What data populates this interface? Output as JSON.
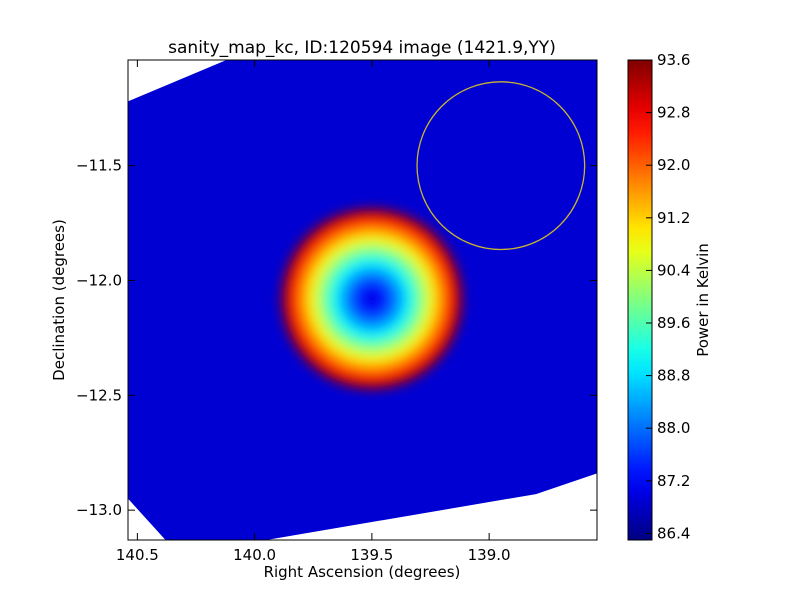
{
  "chart_data": {
    "type": "heatmap",
    "title": "sanity_map_kc, ID:120594 image (1421.9,YY)",
    "xlabel": "Right Ascension (degrees)",
    "ylabel": "Declination (degrees)",
    "xlim": [
      140.54,
      138.54
    ],
    "ylim": [
      -13.13,
      -11.04
    ],
    "x_ticks": [
      140.5,
      140.0,
      139.5,
      139.0
    ],
    "x_tick_labels": [
      "140.5",
      "140.0",
      "139.5",
      "139.0"
    ],
    "y_ticks": [
      -11.5,
      -12.0,
      -12.5,
      -13.0
    ],
    "y_tick_labels": [
      "−11.5",
      "−12.0",
      "−12.5",
      "−13.0"
    ],
    "colorbar": {
      "label": "Power in Kelvin",
      "range": [
        86.3,
        93.6
      ],
      "ticks": [
        86.4,
        87.2,
        88.0,
        88.8,
        89.6,
        90.4,
        91.2,
        92.0,
        92.8,
        93.6
      ],
      "tick_labels": [
        "86.4",
        "87.2",
        "88.0",
        "88.8",
        "89.6",
        "90.4",
        "91.2",
        "92.0",
        "92.8",
        "93.6"
      ],
      "colormap": "jet"
    },
    "peak": {
      "ra": 139.5,
      "dec": -12.08,
      "value": 93.5
    },
    "background_level": 86.9,
    "hot_spot_radius_deg": 0.38,
    "circle": {
      "ra": 138.95,
      "dec": -11.5,
      "radius_deg": 0.365,
      "color": "#c8b432"
    },
    "grid": false,
    "legend": "none"
  }
}
